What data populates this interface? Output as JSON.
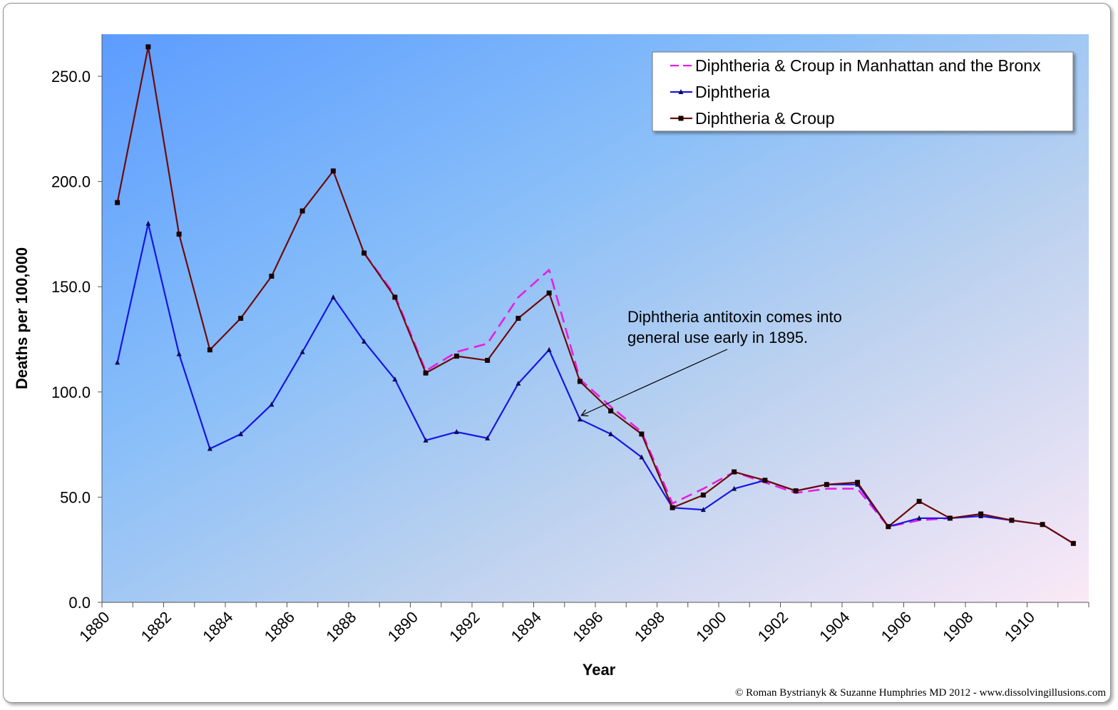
{
  "chart_data": {
    "type": "line",
    "title": "",
    "xlabel": "Year",
    "ylabel": "Deaths per 100,000",
    "xlim": [
      1880,
      1912
    ],
    "ylim": [
      0,
      270
    ],
    "y_ticks": [
      "0.0",
      "50.0",
      "100.0",
      "150.0",
      "200.0",
      "250.0"
    ],
    "x_ticks": [
      "1880",
      "1882",
      "1884",
      "1886",
      "1888",
      "1890",
      "1892",
      "1894",
      "1896",
      "1898",
      "1900",
      "1902",
      "1904",
      "1906",
      "1908",
      "1910"
    ],
    "grid": false,
    "legend_position": "top-right",
    "background": "diagonal gradient from blue (#5c9cff) to pale pink (#fbe9f7)",
    "series": [
      {
        "name": "Diphtheria & Croup in Manhattan and the Bronx",
        "style": "dashed",
        "color": "#e61ee6",
        "x": [
          1888.5,
          1889.5,
          1890.5,
          1891.5,
          1892.5,
          1893.5,
          1894.5,
          1895.5,
          1896.5,
          1897.5,
          1898.5,
          1899.5,
          1900.5,
          1901.5,
          1902.5,
          1903.5,
          1904.5,
          1905.5,
          1906.5,
          1907.5
        ],
        "values": [
          166.0,
          146.0,
          110.0,
          119.0,
          123.0,
          145.0,
          158.0,
          106.0,
          93.0,
          81.0,
          47.0,
          54.0,
          62.0,
          57.0,
          52.0,
          54.0,
          54.0,
          36.0,
          39.0,
          40.0
        ]
      },
      {
        "name": "Diphtheria",
        "style": "solid",
        "marker": "triangle",
        "color": "#1515e6",
        "x": [
          1880.5,
          1881.5,
          1882.5,
          1883.5,
          1884.5,
          1885.5,
          1886.5,
          1887.5,
          1888.5,
          1889.5,
          1890.5,
          1891.5,
          1892.5,
          1893.5,
          1894.5,
          1895.5,
          1896.5,
          1897.5,
          1898.5,
          1899.5,
          1900.5,
          1901.5,
          1902.5,
          1903.5,
          1904.5,
          1905.5,
          1906.5,
          1907.5,
          1908.5,
          1909.5,
          1910.5,
          1911.5
        ],
        "values": [
          114.0,
          180.0,
          118.0,
          73.0,
          80.0,
          94.0,
          119.0,
          145.0,
          124.0,
          106.0,
          77.0,
          81.0,
          78.0,
          104.0,
          120.0,
          87.0,
          80.0,
          69.0,
          45.0,
          44.0,
          54.0,
          58.0,
          53.0,
          56.0,
          56.0,
          36.0,
          40.0,
          40.0,
          41.0,
          39.0,
          37.0,
          28.0
        ]
      },
      {
        "name": "Diphtheria & Croup",
        "style": "solid",
        "marker": "square",
        "color": "#6e0a0a",
        "x": [
          1880.5,
          1881.5,
          1882.5,
          1883.5,
          1884.5,
          1885.5,
          1886.5,
          1887.5,
          1888.5,
          1889.5,
          1890.5,
          1891.5,
          1892.5,
          1893.5,
          1894.5,
          1895.5,
          1896.5,
          1897.5,
          1898.5,
          1899.5,
          1900.5,
          1901.5,
          1902.5,
          1903.5,
          1904.5,
          1905.5,
          1906.5,
          1907.5,
          1908.5,
          1909.5,
          1910.5,
          1911.5
        ],
        "values": [
          190.0,
          264.0,
          175.0,
          120.0,
          135.0,
          155.0,
          186.0,
          205.0,
          166.0,
          145.0,
          109.0,
          117.0,
          115.0,
          135.0,
          147.0,
          105.0,
          91.0,
          80.0,
          45.0,
          51.0,
          62.0,
          58.0,
          53.0,
          56.0,
          57.0,
          36.0,
          48.0,
          40.0,
          42.0,
          39.0,
          37.0,
          28.0
        ]
      }
    ],
    "annotation": {
      "lines": [
        "Diphtheria antitoxin comes into",
        "general use early in 1895."
      ],
      "points_to": {
        "x": 1895.5,
        "y": 88.0
      }
    }
  },
  "credit": "© Roman Bystrianyk & Suzanne Humphries MD 2012 - www.dissolvingillusions.com"
}
